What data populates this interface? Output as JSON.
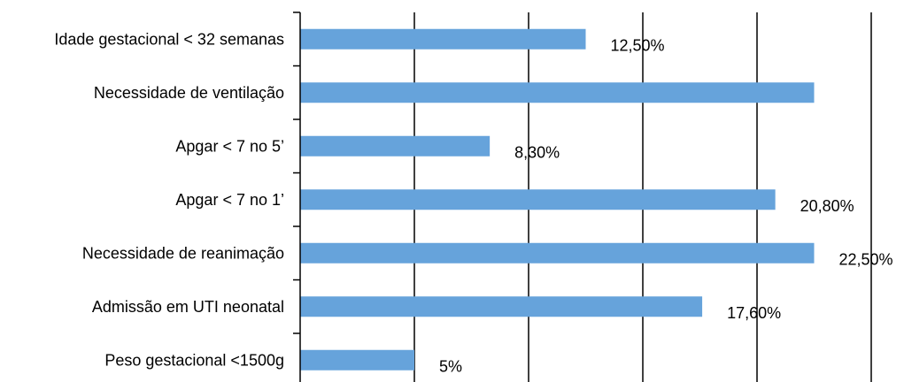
{
  "chart_data": {
    "type": "bar",
    "orientation": "horizontal",
    "categories": [
      "Idade gestacional < 32 semanas",
      "Necessidade de ventilação",
      "Apgar < 7 no 5’",
      "Apgar < 7 no 1’",
      "Necessidade de reanimação",
      "Admissão em UTI neonatal",
      "Peso gestacional <1500g"
    ],
    "values": [
      12.5,
      22.5,
      8.3,
      20.8,
      22.5,
      17.6,
      5
    ],
    "value_labels": [
      "12,50%",
      "",
      "8,30%",
      "20,80%",
      "22,50%",
      "17,60%",
      "5%"
    ],
    "title": "",
    "xlabel": "",
    "ylabel": "",
    "xlim": [
      0,
      25
    ],
    "grid": true,
    "bar_color": "#66a3db",
    "gridline_color": "#000000"
  }
}
